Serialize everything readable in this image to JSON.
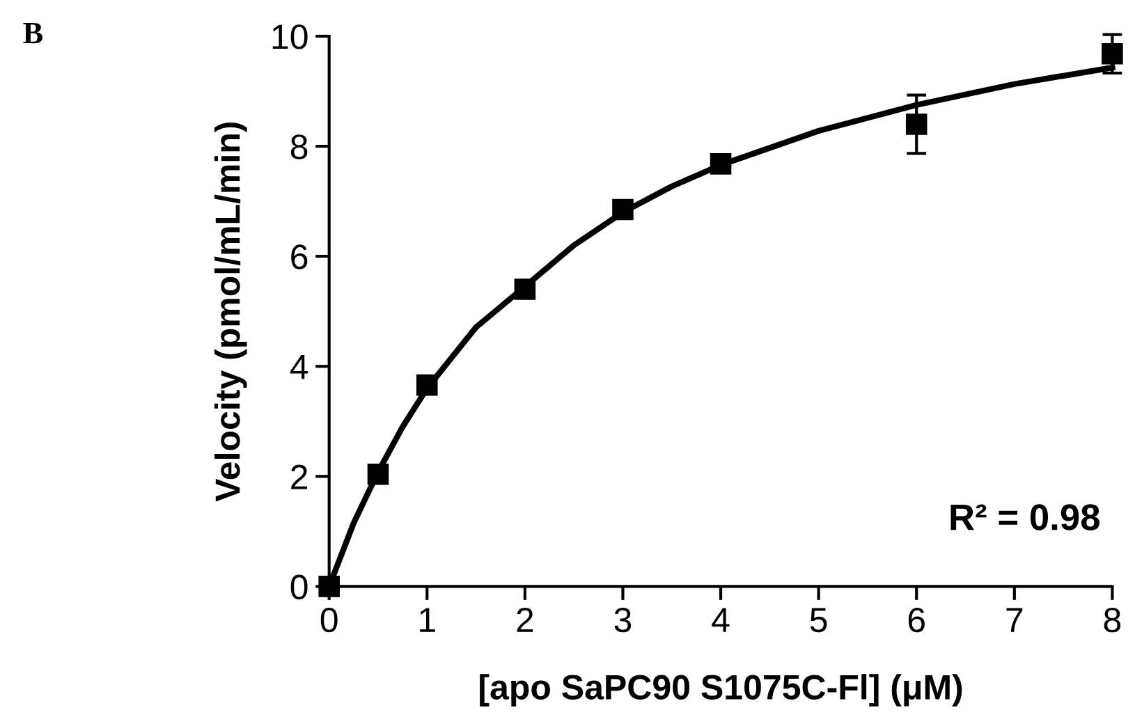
{
  "chart_data": {
    "type": "scatter",
    "xlabel": "[apo SaPC90 S1075C-Fl] (μM)",
    "ylabel": "Velocity (pmol/mL/min)",
    "annotations": [
      "B",
      "R² = 0.98"
    ],
    "xlim": [
      0,
      8
    ],
    "ylim": [
      0,
      10
    ],
    "xticks": [
      0,
      1,
      2,
      3,
      4,
      5,
      6,
      7,
      8
    ],
    "yticks": [
      0,
      2,
      4,
      6,
      8,
      10
    ],
    "grid": false,
    "marker": "square",
    "series": [
      {
        "color": "#000000",
        "x": [
          0,
          0.5,
          1,
          2,
          3,
          4,
          6,
          8
        ],
        "values": [
          0,
          2.04,
          3.66,
          5.4,
          6.85,
          7.68,
          8.4,
          9.68
        ],
        "errors": [
          null,
          null,
          0.08,
          null,
          null,
          0.08,
          0.53,
          0.35
        ]
      },
      {
        "type": "line",
        "color": "#000000",
        "line_style": "solid",
        "marker": "none",
        "x": [
          0,
          0.25,
          0.5,
          0.75,
          1,
          1.5,
          2,
          2.5,
          3,
          3.5,
          4,
          5,
          6,
          7,
          8
        ],
        "values": [
          0,
          1.15,
          2.08,
          2.9,
          3.6,
          4.71,
          5.45,
          6.2,
          6.8,
          7.27,
          7.66,
          8.28,
          8.75,
          9.13,
          9.43
        ]
      }
    ]
  }
}
